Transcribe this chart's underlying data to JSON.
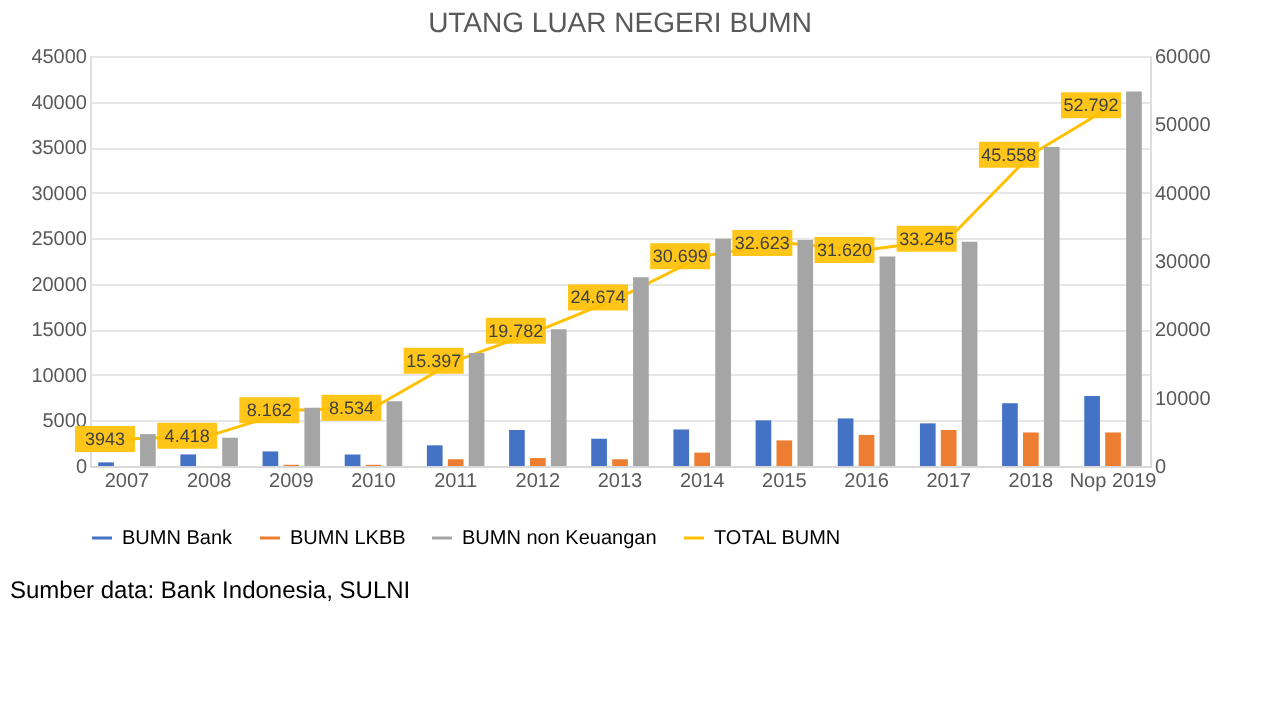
{
  "chart_data": {
    "type": "bar",
    "title": "UTANG LUAR NEGERI BUMN",
    "categories": [
      "2007",
      "2008",
      "2009",
      "2010",
      "2011",
      "2012",
      "2013",
      "2014",
      "2015",
      "2016",
      "2017",
      "2018",
      "Nop 2019"
    ],
    "series": [
      {
        "name": "BUMN Bank",
        "color": "#4472c4",
        "values": [
          400,
          1270,
          1600,
          1270,
          2270,
          3950,
          3000,
          4010,
          5010,
          5220,
          4680,
          6890,
          7690
        ]
      },
      {
        "name": "BUMN LKBB",
        "color": "#ed7d31",
        "values": [
          0,
          0,
          130,
          130,
          740,
          870,
          740,
          1470,
          2810,
          3410,
          3950,
          3680,
          3680
        ]
      },
      {
        "name": "BUMN non Keuangan",
        "color": "#a5a5a5",
        "values": [
          3500,
          3100,
          6400,
          7100,
          12400,
          15000,
          20730,
          24940,
          24800,
          23000,
          24600,
          35000,
          41100
        ]
      },
      {
        "name": "TOTAL BUMN",
        "type": "line",
        "marker": "none",
        "axis": "y2",
        "color": "#ffc000",
        "values": [
          3943,
          4418,
          8162,
          8534,
          15397,
          19782,
          24674,
          30699,
          32623,
          31620,
          33245,
          45558,
          52792
        ],
        "value_labels": [
          "3943",
          "4.418",
          "8.162",
          "8.534",
          "15.397",
          "19.782",
          "24.674",
          "30.699",
          "32.623",
          "31.620",
          "33.245",
          "45.558",
          "52.792"
        ]
      }
    ],
    "ylim": [
      0,
      45000
    ],
    "yticks": [
      0,
      5000,
      10000,
      15000,
      20000,
      25000,
      30000,
      35000,
      40000,
      45000
    ],
    "y2lim": [
      0,
      60000
    ],
    "y2ticks": [
      0,
      10000,
      20000,
      30000,
      40000,
      50000,
      60000
    ],
    "grid": "y",
    "legend": "bottom",
    "annotations": [
      "Sumber data: Bank Indonesia, SULNI"
    ]
  }
}
